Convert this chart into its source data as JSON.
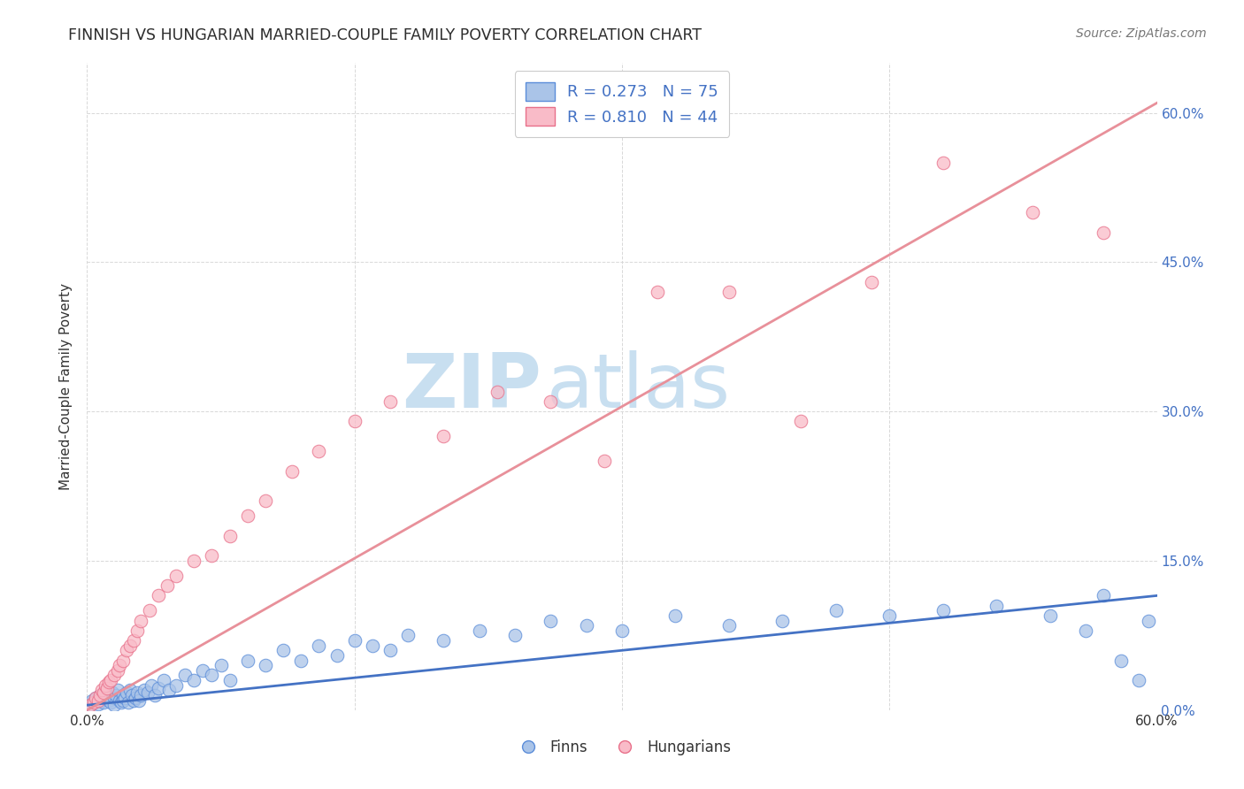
{
  "title": "FINNISH VS HUNGARIAN MARRIED-COUPLE FAMILY POVERTY CORRELATION CHART",
  "source": "Source: ZipAtlas.com",
  "ylabel": "Married-Couple Family Poverty",
  "xlim": [
    0.0,
    0.6
  ],
  "ylim": [
    0.0,
    0.65
  ],
  "yticks": [
    0.0,
    0.15,
    0.3,
    0.45,
    0.6
  ],
  "ytick_labels": [
    "0.0%",
    "15.0%",
    "30.0%",
    "45.0%",
    "60.0%"
  ],
  "xtick_labels": [
    "0.0%",
    "60.0%"
  ],
  "title_color": "#2d2d2d",
  "source_color": "#777777",
  "watermark_zip": "ZIP",
  "watermark_atlas": "atlas",
  "watermark_color": "#c8dff0",
  "legend_r1": "0.273",
  "legend_n1": "75",
  "legend_r2": "0.810",
  "legend_n2": "44",
  "legend_label1": "Finns",
  "legend_label2": "Hungarians",
  "finns_face_color": "#aac4e8",
  "finns_edge_color": "#5b8dd9",
  "hungarians_face_color": "#f9bbc8",
  "hungarians_edge_color": "#e8708a",
  "finns_line_color": "#4472c4",
  "hungarians_line_color": "#e8909a",
  "label_color": "#4472c4",
  "grid_color": "#d8d8d8",
  "finns_trend_x": [
    0.0,
    0.6
  ],
  "finns_trend_y": [
    0.005,
    0.115
  ],
  "hungarians_trend_x": [
    0.0,
    0.6
  ],
  "hungarians_trend_y": [
    0.0,
    0.61
  ],
  "finns_x": [
    0.002,
    0.003,
    0.004,
    0.005,
    0.006,
    0.007,
    0.008,
    0.009,
    0.01,
    0.01,
    0.011,
    0.012,
    0.013,
    0.014,
    0.015,
    0.015,
    0.016,
    0.017,
    0.018,
    0.019,
    0.02,
    0.02,
    0.021,
    0.022,
    0.023,
    0.024,
    0.025,
    0.026,
    0.027,
    0.028,
    0.029,
    0.03,
    0.032,
    0.034,
    0.036,
    0.038,
    0.04,
    0.043,
    0.046,
    0.05,
    0.055,
    0.06,
    0.065,
    0.07,
    0.075,
    0.08,
    0.09,
    0.1,
    0.11,
    0.12,
    0.13,
    0.14,
    0.15,
    0.16,
    0.17,
    0.18,
    0.2,
    0.22,
    0.24,
    0.26,
    0.28,
    0.3,
    0.33,
    0.36,
    0.39,
    0.42,
    0.45,
    0.48,
    0.51,
    0.54,
    0.56,
    0.57,
    0.58,
    0.59,
    0.595
  ],
  "finns_y": [
    0.005,
    0.01,
    0.008,
    0.012,
    0.006,
    0.015,
    0.01,
    0.008,
    0.012,
    0.02,
    0.015,
    0.01,
    0.008,
    0.018,
    0.012,
    0.005,
    0.015,
    0.02,
    0.01,
    0.008,
    0.015,
    0.01,
    0.012,
    0.018,
    0.008,
    0.02,
    0.015,
    0.01,
    0.012,
    0.018,
    0.01,
    0.015,
    0.02,
    0.018,
    0.025,
    0.015,
    0.022,
    0.03,
    0.02,
    0.025,
    0.035,
    0.03,
    0.04,
    0.035,
    0.045,
    0.03,
    0.05,
    0.045,
    0.06,
    0.05,
    0.065,
    0.055,
    0.07,
    0.065,
    0.06,
    0.075,
    0.07,
    0.08,
    0.075,
    0.09,
    0.085,
    0.08,
    0.095,
    0.085,
    0.09,
    0.1,
    0.095,
    0.1,
    0.105,
    0.095,
    0.08,
    0.115,
    0.05,
    0.03,
    0.09
  ],
  "hungarians_x": [
    0.002,
    0.004,
    0.005,
    0.006,
    0.007,
    0.008,
    0.009,
    0.01,
    0.011,
    0.012,
    0.013,
    0.015,
    0.017,
    0.018,
    0.02,
    0.022,
    0.024,
    0.026,
    0.028,
    0.03,
    0.035,
    0.04,
    0.045,
    0.05,
    0.06,
    0.07,
    0.08,
    0.09,
    0.1,
    0.115,
    0.13,
    0.15,
    0.17,
    0.2,
    0.23,
    0.26,
    0.29,
    0.32,
    0.36,
    0.4,
    0.44,
    0.48,
    0.53,
    0.57
  ],
  "hungarians_y": [
    0.005,
    0.008,
    0.012,
    0.01,
    0.015,
    0.02,
    0.018,
    0.025,
    0.022,
    0.028,
    0.03,
    0.035,
    0.04,
    0.045,
    0.05,
    0.06,
    0.065,
    0.07,
    0.08,
    0.09,
    0.1,
    0.115,
    0.125,
    0.135,
    0.15,
    0.155,
    0.175,
    0.195,
    0.21,
    0.24,
    0.26,
    0.29,
    0.31,
    0.275,
    0.32,
    0.31,
    0.25,
    0.42,
    0.42,
    0.29,
    0.43,
    0.55,
    0.5,
    0.48
  ],
  "background_color": "#ffffff"
}
